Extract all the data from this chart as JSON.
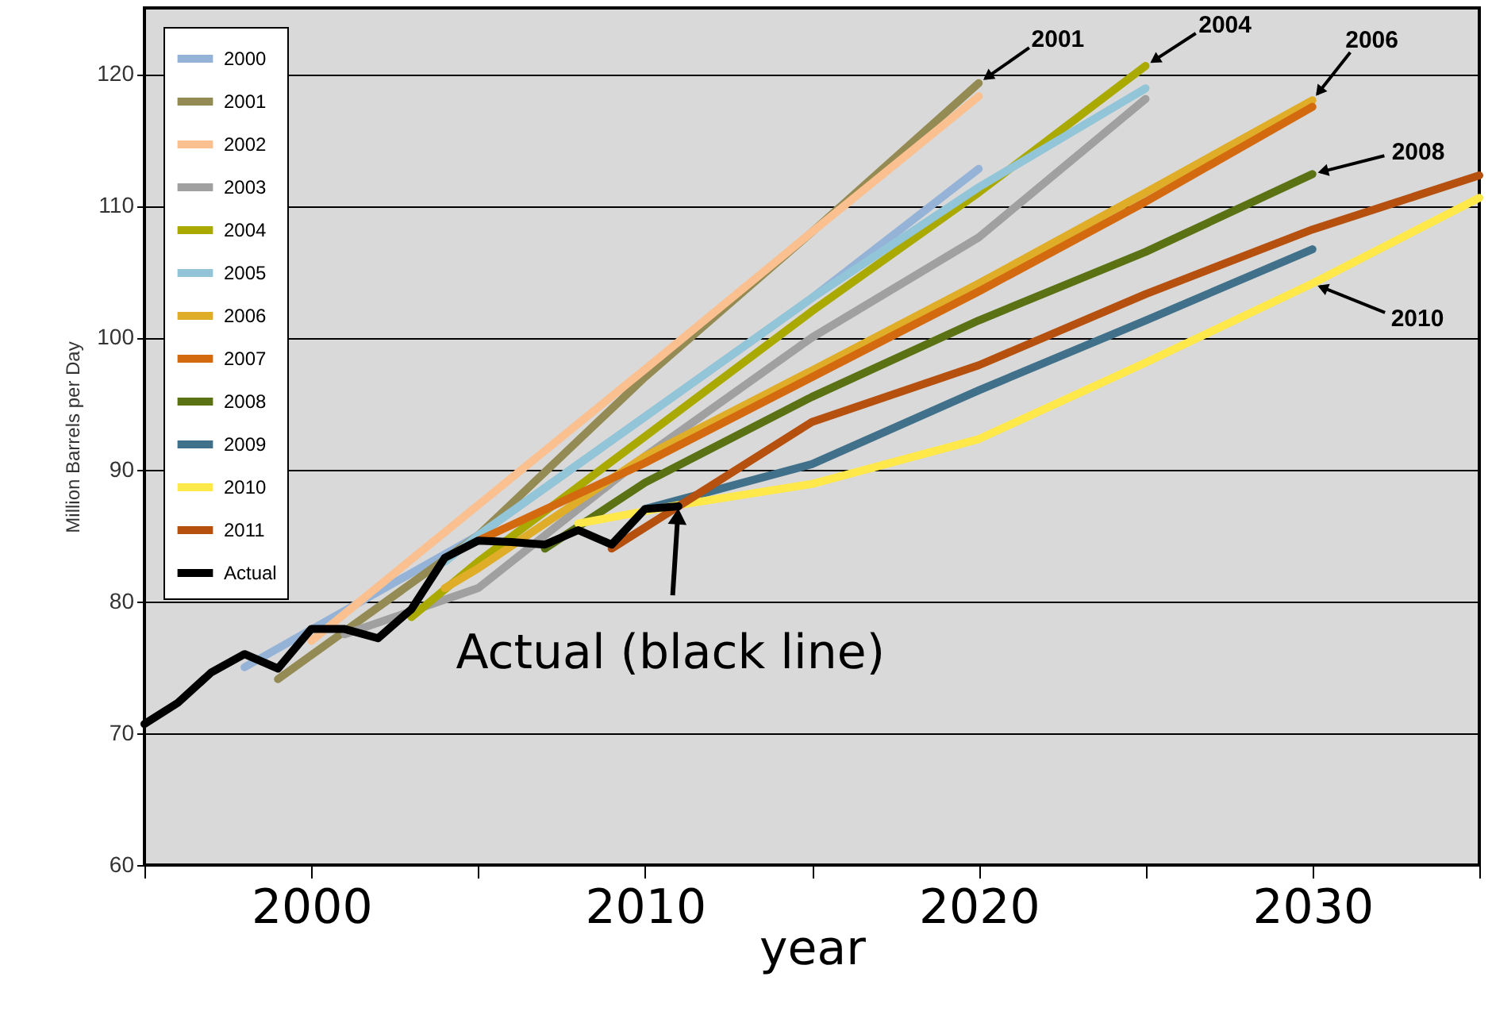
{
  "chart_data": {
    "type": "line",
    "ylabel": "Million Barrels per Day",
    "xlabel": "year",
    "xlim": [
      1995,
      2035
    ],
    "ylim": [
      60,
      125
    ],
    "xticks": [
      {
        "value": 1995,
        "label": null
      },
      2000,
      {
        "value": 2005,
        "label": null
      },
      2010,
      {
        "value": 2015,
        "label": null
      },
      2020,
      {
        "value": 2025,
        "label": null
      },
      2030,
      {
        "value": 2035,
        "label": null
      }
    ],
    "yticks": [
      60,
      70,
      80,
      90,
      100,
      110,
      120
    ],
    "grid": "y",
    "legend": "top left",
    "line_style": "solid",
    "marker": "none",
    "series": [
      {
        "name": "2000",
        "color": "#95b3d7",
        "x": [
          1998,
          2005,
          2010,
          2015,
          2020
        ],
        "values": [
          75,
          85,
          94,
          103,
          112.8
        ]
      },
      {
        "name": "2001",
        "color": "#948a54",
        "x": [
          1999,
          2005,
          2010,
          2015,
          2020
        ],
        "values": [
          74.1,
          85,
          97,
          108,
          119.3
        ]
      },
      {
        "name": "2002",
        "color": "#fac090",
        "x": [
          2000,
          2005,
          2010,
          2015,
          2020
        ],
        "values": [
          77,
          87.3,
          97.6,
          108,
          118.3
        ]
      },
      {
        "name": "2003",
        "color": "#a0a0a0",
        "x": [
          2001,
          2005,
          2010,
          2015,
          2020,
          2025
        ],
        "values": [
          77.5,
          81,
          91,
          100,
          107.6,
          118.1
        ]
      },
      {
        "name": "2004",
        "color": "#aaa900",
        "x": [
          2003,
          2005,
          2010,
          2015,
          2020,
          2025
        ],
        "values": [
          78.8,
          83,
          92.5,
          102,
          111,
          120.6
        ]
      },
      {
        "name": "2005",
        "color": "#92c5d7",
        "x": [
          2004,
          2005,
          2010,
          2015,
          2020,
          2025
        ],
        "values": [
          83,
          85,
          94,
          103,
          111.4,
          118.9
        ]
      },
      {
        "name": "2006",
        "color": "#dfad28",
        "x": [
          2004,
          2005,
          2010,
          2015,
          2020,
          2025,
          2030
        ],
        "values": [
          81,
          82.5,
          91,
          97.5,
          104.1,
          111,
          118
        ]
      },
      {
        "name": "2007",
        "color": "#d46a10",
        "x": [
          2005,
          2010,
          2015,
          2020,
          2025,
          2030
        ],
        "values": [
          84.6,
          90.5,
          97,
          103.5,
          110.3,
          117.5
        ]
      },
      {
        "name": "2008",
        "color": "#5a7213",
        "x": [
          2007,
          2010,
          2015,
          2020,
          2025,
          2030
        ],
        "values": [
          84,
          89,
          95.5,
          101.3,
          106.5,
          112.4
        ]
      },
      {
        "name": "2009",
        "color": "#41718a",
        "x": [
          2010,
          2015,
          2020,
          2025,
          2030
        ],
        "values": [
          87,
          90.4,
          96,
          101.3,
          106.7
        ]
      },
      {
        "name": "2010",
        "color": "#ffe84a",
        "x": [
          2008,
          2011,
          2015,
          2020,
          2025,
          2030,
          2035
        ],
        "values": [
          85.9,
          87.3,
          88.9,
          92.3,
          98.1,
          104.1,
          110.6
        ]
      },
      {
        "name": "2011",
        "color": "#b5500f",
        "x": [
          2009,
          2011,
          2015,
          2020,
          2025,
          2030,
          2035
        ],
        "values": [
          84,
          87.2,
          93.6,
          97.9,
          103.3,
          108.2,
          112.3
        ]
      },
      {
        "name": "Actual",
        "color": "#000000",
        "x": [
          1995,
          1996,
          1997,
          1998,
          1999,
          2000,
          2001,
          2002,
          2003,
          2004,
          2005,
          2006,
          2007,
          2008,
          2009,
          2010,
          2011
        ],
        "values": [
          70.7,
          72.3,
          74.6,
          76.0,
          74.9,
          77.9,
          77.9,
          77.2,
          79.4,
          83.3,
          84.6,
          84.5,
          84.3,
          85.4,
          84.3,
          87.0,
          87.2
        ]
      }
    ],
    "annotations": [
      {
        "text": "2001",
        "x": 2020,
        "y": 119.3
      },
      {
        "text": "2004",
        "x": 2025,
        "y": 120.6
      },
      {
        "text": "2006",
        "x": 2030,
        "y": 118
      },
      {
        "text": "2008",
        "x": 2030,
        "y": 112.4
      },
      {
        "text": "2010",
        "x": 2030,
        "y": 104.1
      },
      {
        "text": "Actual (black line)",
        "x": 2011,
        "y": 87.2
      }
    ]
  }
}
